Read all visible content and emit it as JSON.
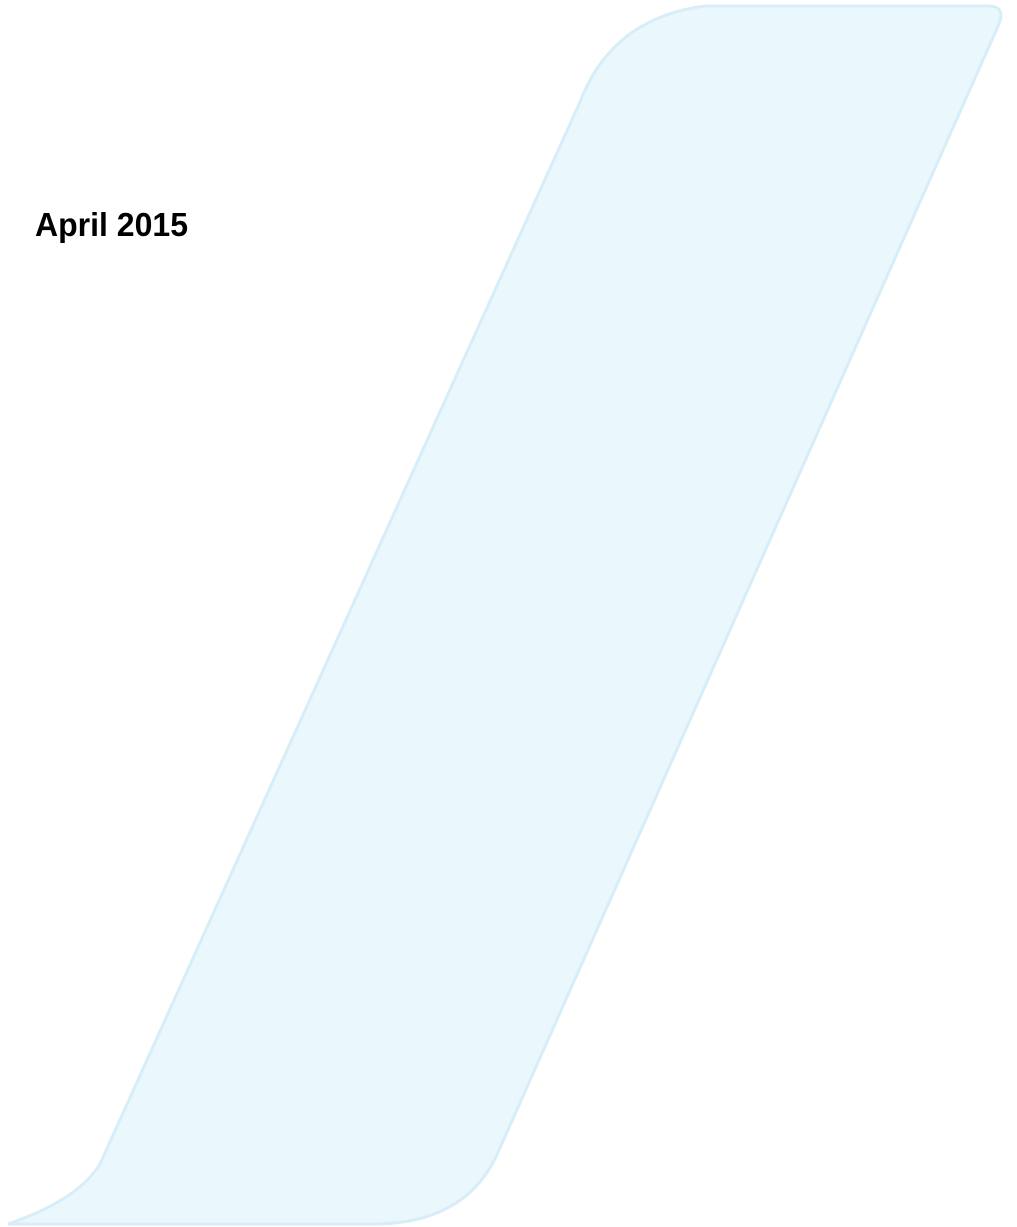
{
  "cover": {
    "date": "April 2015"
  }
}
